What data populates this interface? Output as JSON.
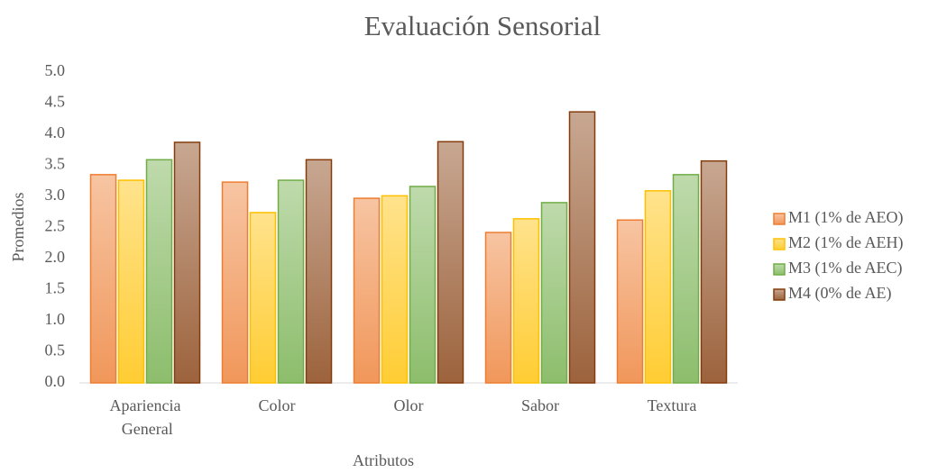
{
  "chart_data": {
    "type": "bar",
    "title": "Evaluación Sensorial",
    "x_label": "Atributos",
    "y_label": "Promedios",
    "categories": [
      "Apariencia General",
      "Color",
      "Olor",
      "Sabor",
      "Textura"
    ],
    "series": [
      {
        "name": "M1 (1% de AEO)",
        "color": "#ed7d31",
        "values": [
          3.35,
          3.23,
          2.97,
          2.42,
          2.62
        ]
      },
      {
        "name": "M2 (1% de AEH)",
        "color": "#ffc000",
        "values": [
          3.26,
          2.74,
          3.01,
          2.64,
          3.09
        ]
      },
      {
        "name": "M3 (1% de AEC)",
        "color": "#70ad47",
        "values": [
          3.59,
          3.26,
          3.16,
          2.9,
          3.35
        ]
      },
      {
        "name": "M4 (0% de AE)",
        "color": "#843c0c",
        "values": [
          3.87,
          3.59,
          3.88,
          4.36,
          3.57
        ]
      }
    ],
    "ylim": [
      0,
      5
    ],
    "yticks": [
      {
        "value": 0,
        "label": "0.0"
      },
      0.5,
      {
        "value": 1,
        "label": "1.0"
      },
      1.5,
      {
        "value": 2,
        "label": "2.0"
      },
      2.5,
      {
        "value": 3,
        "label": "3.0"
      },
      3.5,
      {
        "value": 4,
        "label": "4.0"
      },
      4.5,
      {
        "value": 5,
        "label": "5.0"
      }
    ],
    "grid": false,
    "legend": "right"
  }
}
